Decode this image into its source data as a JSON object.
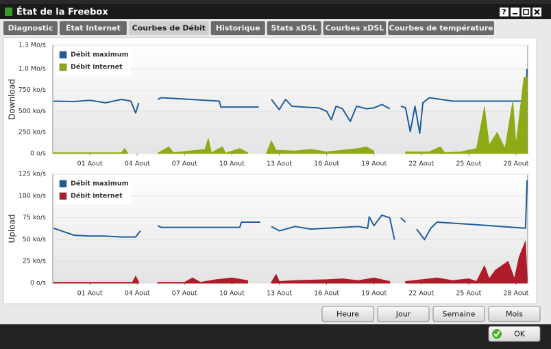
{
  "window": {
    "title": "État de la Freebox",
    "help": "?"
  },
  "tabs": [
    "Diagnostic",
    "État Internet",
    "Courbes de Débit",
    "Historique",
    "Stats xDSL",
    "Courbes xDSL",
    "Courbes de température"
  ],
  "active_tab": 2,
  "chart_data": [
    {
      "type": "line",
      "ylabel": "Download",
      "xlim": [
        -1.35,
        28.74
      ],
      "xticks": [
        {
          "value": 1,
          "label": "01 Aout"
        },
        {
          "value": 4,
          "label": "04 Aout"
        },
        {
          "value": 7,
          "label": "07 Aout"
        },
        {
          "value": 10,
          "label": "10 Aout"
        },
        {
          "value": 13,
          "label": "13 Aout"
        },
        {
          "value": 16,
          "label": "16 Aout"
        },
        {
          "value": 19,
          "label": "19 Aout"
        },
        {
          "value": 22,
          "label": "22 Aout"
        },
        {
          "value": 25,
          "label": "25 Aout"
        },
        {
          "value": 28,
          "label": "28 Aout"
        }
      ],
      "ylim": [
        0,
        1280
      ],
      "yticks": [
        {
          "value": 0,
          "label": "0 o/s"
        },
        {
          "value": 250,
          "label": "250 ko/s"
        },
        {
          "value": 500,
          "label": "500 ko/s"
        },
        {
          "value": 750,
          "label": "750 ko/s"
        },
        {
          "value": 1000,
          "label": "1.0 Mo/s"
        },
        {
          "value": 1280,
          "label": "1.3 Mo/s"
        }
      ],
      "grid": true,
      "series": [
        {
          "name": "Débit maximum",
          "color": "#1d5d9e",
          "area": false,
          "x": [
            -1.3,
            0,
            1,
            2,
            3,
            3.6,
            3.9,
            4.1,
            4.2,
            5.3,
            5.5,
            7.4,
            9.2,
            9.3,
            11.7,
            11.8,
            12.5,
            13.0,
            13.4,
            13.8,
            14.5,
            15.5,
            16.0,
            16.3,
            16.6,
            17.0,
            17.5,
            17.9,
            18.5,
            19.0,
            19.5,
            20.0,
            20.5,
            20.7,
            21.0,
            21.3,
            21.6,
            21.9,
            22.1,
            22.5,
            24.0,
            27.0,
            28.6,
            28.7
          ],
          "values": [
            620,
            615,
            630,
            600,
            640,
            620,
            480,
            600,
            null,
            640,
            660,
            640,
            620,
            550,
            550,
            null,
            640,
            520,
            640,
            560,
            550,
            540,
            500,
            400,
            560,
            530,
            380,
            560,
            530,
            540,
            580,
            530,
            null,
            560,
            540,
            260,
            560,
            240,
            600,
            660,
            620,
            620,
            620,
            1000
          ]
        },
        {
          "name": "Débit internet",
          "color": "#8dab16",
          "area": true,
          "x": [
            -1.3,
            3.0,
            3.2,
            3.4,
            4.1,
            5.3,
            6.0,
            6.3,
            8.3,
            8.5,
            8.7,
            9.4,
            9.6,
            10.5,
            11,
            11.7,
            12.2,
            12.5,
            12.8,
            14,
            15,
            16,
            17,
            18,
            18.5,
            19,
            20.5,
            21,
            22.5,
            23.2,
            23.5,
            24.5,
            25.5,
            26,
            26.3,
            26.8,
            27.3,
            27.8,
            28,
            28.5,
            28.7
          ],
          "values": [
            10,
            10,
            60,
            5,
            null,
            5,
            80,
            10,
            50,
            180,
            10,
            80,
            5,
            60,
            10,
            null,
            10,
            150,
            40,
            30,
            50,
            20,
            40,
            60,
            80,
            30,
            null,
            20,
            20,
            80,
            10,
            20,
            60,
            550,
            100,
            250,
            60,
            620,
            100,
            900,
            900
          ]
        }
      ]
    },
    {
      "type": "line",
      "ylabel": "Upload",
      "xlim": [
        -1.35,
        28.74
      ],
      "xticks": [
        {
          "value": 1,
          "label": "01 Aout"
        },
        {
          "value": 4,
          "label": "04 Aout"
        },
        {
          "value": 7,
          "label": "07 Aout"
        },
        {
          "value": 10,
          "label": "10 Aout"
        },
        {
          "value": 13,
          "label": "13 Aout"
        },
        {
          "value": 16,
          "label": "16 Aout"
        },
        {
          "value": 19,
          "label": "19 Aout"
        },
        {
          "value": 22,
          "label": "22 Aout"
        },
        {
          "value": 25,
          "label": "25 Aout"
        },
        {
          "value": 28,
          "label": "28 Aout"
        }
      ],
      "ylim": [
        0,
        125
      ],
      "yticks": [
        {
          "value": 0,
          "label": "0 o/s"
        },
        {
          "value": 25,
          "label": "25 ko/s"
        },
        {
          "value": 50,
          "label": "50 ko/s"
        },
        {
          "value": 75,
          "label": "75 ko/s"
        },
        {
          "value": 100,
          "label": "100 ko/s"
        },
        {
          "value": 125,
          "label": "125 ko/s"
        }
      ],
      "grid": true,
      "series": [
        {
          "name": "Débit maximum",
          "color": "#1d5d9e",
          "area": false,
          "x": [
            -1.3,
            0,
            1,
            2,
            3,
            3.9,
            4.2,
            4.4,
            5.3,
            5.5,
            10.5,
            10.6,
            11.8,
            11.9,
            12.5,
            13,
            14,
            15,
            16,
            17,
            18,
            18.6,
            18.7,
            19,
            19.5,
            20.0,
            20.3,
            20.5,
            20.7,
            21,
            21.5,
            21.7,
            22.2,
            22.6,
            23.0,
            25.5,
            28.6,
            28.7
          ],
          "values": [
            63,
            55,
            54,
            54,
            53,
            53,
            60,
            null,
            66,
            64,
            64,
            70,
            70,
            null,
            65,
            60,
            65,
            62,
            63,
            64,
            65,
            63,
            76,
            66,
            78,
            75,
            50,
            null,
            75,
            70,
            null,
            62,
            50,
            63,
            70,
            67,
            63,
            118
          ]
        },
        {
          "name": "Débit internet",
          "color": "#ad1c28",
          "area": true,
          "x": [
            -1.3,
            3.7,
            3.9,
            4.1,
            4.2,
            5.3,
            7,
            7.5,
            8,
            9,
            10,
            11,
            11.7,
            12.5,
            12.8,
            13,
            14,
            16,
            17,
            18,
            19,
            20,
            20.5,
            21,
            23.0,
            24,
            25,
            25.5,
            26,
            26.3,
            26.7,
            27.5,
            27.9,
            28.2,
            28.6,
            28.7
          ],
          "values": [
            1,
            1,
            8,
            1,
            null,
            1,
            1,
            6,
            1,
            4,
            6,
            3,
            null,
            1,
            10,
            2,
            3,
            4,
            5,
            3,
            6,
            2,
            null,
            2,
            6,
            3,
            5,
            2,
            20,
            5,
            15,
            25,
            5,
            30,
            48,
            5
          ]
        }
      ]
    }
  ],
  "buttons": [
    "Heure",
    "Jour",
    "Semaine",
    "Mois"
  ],
  "ok": "OK"
}
